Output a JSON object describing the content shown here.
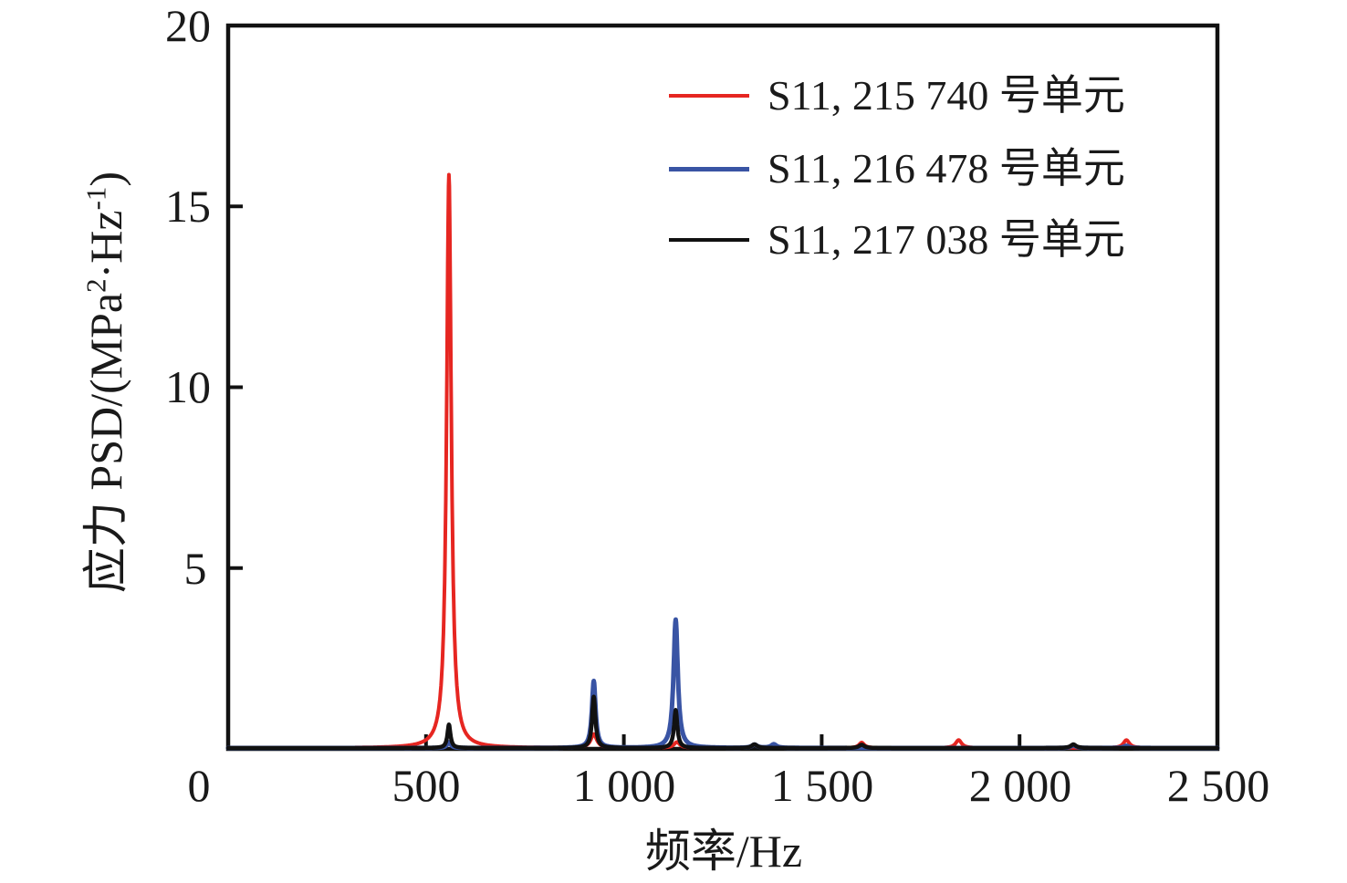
{
  "figure": {
    "background": "#ffffff",
    "text_color": "#1a1a1a",
    "frame_color": "#111111"
  },
  "axes": {
    "xlabel": "频率/Hz",
    "ylabel_parts": [
      "应力 PSD/(MPa",
      "2",
      "·Hz",
      "-1",
      ")"
    ],
    "origin_label": "0",
    "x_tick_labels": [
      "500",
      "1 000",
      "1 500",
      "2 000",
      "2 500"
    ],
    "y_tick_labels": [
      "5",
      "10",
      "15",
      "20"
    ]
  },
  "legend": {
    "items": [
      {
        "label": "S11, 215 740 号单元",
        "color": "#e62621"
      },
      {
        "label": "S11, 216 478 号单元",
        "color": "#3954a4"
      },
      {
        "label": "S11, 217 038 号单元",
        "color": "#111111"
      }
    ]
  },
  "chart_data": {
    "type": "line",
    "title": "",
    "xlabel": "频率/Hz",
    "ylabel": "应力 PSD/(MPa²·Hz⁻¹)",
    "xlim": [
      0,
      2500
    ],
    "ylim": [
      0,
      20
    ],
    "x_ticks": [
      0,
      500,
      1000,
      1500,
      2000,
      2500
    ],
    "y_ticks": [
      0,
      5,
      10,
      15,
      20
    ],
    "grid": false,
    "legend_position": "upper right inside",
    "peak_model": "lorentzian: value = a / (1 + ((x - f)/w)^2), x in Hz",
    "series": [
      {
        "name": "S11, 215 740 号单元",
        "color": "#e62621",
        "line_width": 4,
        "peaks": [
          {
            "f": 558,
            "a": 15.85,
            "w": 7
          },
          {
            "f": 924,
            "a": 0.38,
            "w": 9
          },
          {
            "f": 1134,
            "a": 0.16,
            "w": 9
          },
          {
            "f": 1330,
            "a": 0.1,
            "w": 8
          },
          {
            "f": 1601,
            "a": 0.15,
            "w": 8
          },
          {
            "f": 1846,
            "a": 0.22,
            "w": 9
          },
          {
            "f": 2270,
            "a": 0.22,
            "w": 9
          }
        ]
      },
      {
        "name": "S11, 216 478 号单元",
        "color": "#3954a4",
        "line_width": 5,
        "peaks": [
          {
            "f": 558,
            "a": 0.16,
            "w": 6
          },
          {
            "f": 924,
            "a": 1.85,
            "w": 5.5
          },
          {
            "f": 1131,
            "a": 3.55,
            "w": 6.5
          },
          {
            "f": 1330,
            "a": 0.09,
            "w": 8
          },
          {
            "f": 1379,
            "a": 0.1,
            "w": 8
          },
          {
            "f": 2136,
            "a": 0.07,
            "w": 8
          },
          {
            "f": 2270,
            "a": 0.06,
            "w": 8
          }
        ]
      },
      {
        "name": "S11, 217 038 号单元",
        "color": "#111111",
        "line_width": 4.5,
        "peaks": [
          {
            "f": 558,
            "a": 0.65,
            "w": 4.5
          },
          {
            "f": 924,
            "a": 1.42,
            "w": 5
          },
          {
            "f": 1131,
            "a": 1.05,
            "w": 5
          },
          {
            "f": 1330,
            "a": 0.1,
            "w": 8
          },
          {
            "f": 1601,
            "a": 0.09,
            "w": 8
          },
          {
            "f": 2136,
            "a": 0.1,
            "w": 8
          }
        ]
      }
    ]
  }
}
